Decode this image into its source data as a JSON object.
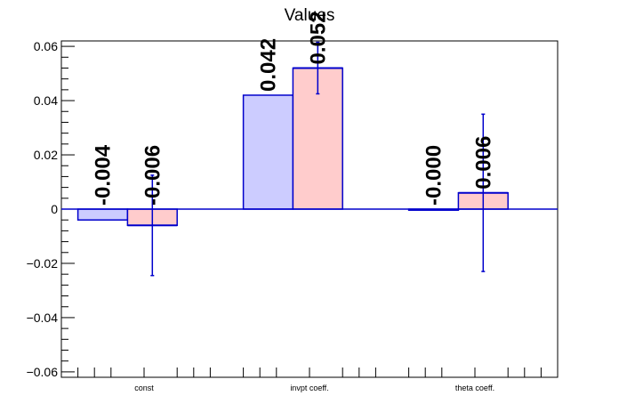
{
  "chart_data": {
    "type": "bar",
    "title": "Values",
    "xlabel": "",
    "ylabel": "",
    "categories": [
      "const",
      "invpt coeff.",
      "theta coeff."
    ],
    "ylim": [
      -0.062,
      0.062
    ],
    "yticks": [
      -0.06,
      -0.04,
      -0.02,
      0,
      0.02,
      0.04,
      0.06
    ],
    "ytick_labels": [
      "−0.06",
      "−0.04",
      "−0.02",
      "0",
      "0.02",
      "0.04",
      "0.06"
    ],
    "grid": false,
    "series": [
      {
        "values": [
          -0.004,
          0.042,
          -0.0004
        ],
        "labels": [
          "-0.004",
          "0.042",
          "-0.000"
        ],
        "fill": "#ccccff",
        "stroke": "#0000cc"
      },
      {
        "values": [
          -0.006,
          0.052,
          0.006
        ],
        "labels": [
          "-0.006",
          "0.052",
          "0.006"
        ],
        "errors": [
          0.0185,
          0.0095,
          0.029
        ],
        "fill": "#ffcccc",
        "stroke": "#0000cc"
      }
    ]
  }
}
